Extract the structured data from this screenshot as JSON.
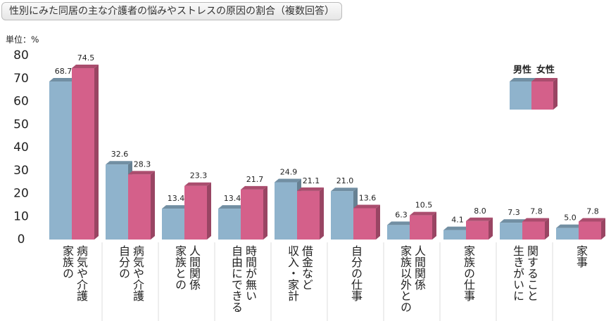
{
  "chart_data": {
    "type": "bar3d",
    "title": "性別にみた同居の主な介護者の悩みやストレスの原因の割合（複数回答）",
    "unit_label": "単位：%",
    "categories": [
      [
        "家族の",
        "病気や介護"
      ],
      [
        "自分の",
        "病気や介護"
      ],
      [
        "家族との",
        "人間関係"
      ],
      [
        "自由にできる",
        "時間が無い"
      ],
      [
        "収入・家計",
        "借金など"
      ],
      [
        "自分の仕事"
      ],
      [
        "家族以外との",
        "人間関係"
      ],
      [
        "家族の仕事"
      ],
      [
        "生きがいに",
        "関すること"
      ],
      [
        "家事"
      ]
    ],
    "series": [
      {
        "name": "男性",
        "color": "#8fb3cc",
        "values": [
          68.7,
          32.6,
          13.4,
          13.4,
          24.9,
          21.0,
          6.3,
          4.1,
          7.3,
          5.0
        ],
        "value_labels": [
          "68.7",
          "32.6",
          "13.4",
          "13.4",
          "24.9",
          "21.0",
          "6.3",
          "4.1",
          "7.3",
          "5.0"
        ]
      },
      {
        "name": "女性",
        "color": "#d4608a",
        "values": [
          74.5,
          28.3,
          23.3,
          21.7,
          21.1,
          13.6,
          10.5,
          8.0,
          7.8,
          7.8
        ],
        "value_labels": [
          "74.5",
          "28.3",
          "23.3",
          "21.7",
          "21.1",
          "13.6",
          "10.5",
          "8.0",
          "7.8",
          "7.8"
        ]
      }
    ],
    "ylim": [
      0,
      80
    ],
    "yticks": [
      0,
      10,
      20,
      30,
      40,
      50,
      60,
      70,
      80
    ],
    "grid": false,
    "legend": "upper right"
  }
}
